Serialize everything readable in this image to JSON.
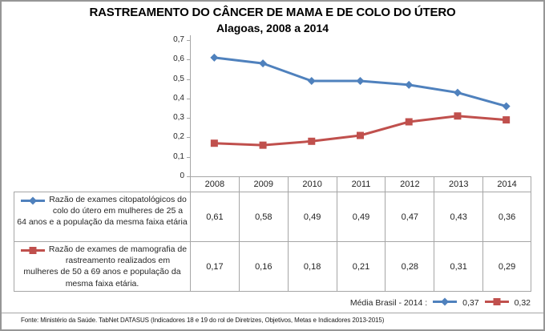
{
  "title": "RASTREAMENTO DO CÂNCER DE MAMA E DE COLO DO ÚTERO",
  "subtitle": "Alagoas, 2008 a 2014",
  "chart_data": {
    "type": "line",
    "categories": [
      "2008",
      "2009",
      "2010",
      "2011",
      "2012",
      "2013",
      "2014"
    ],
    "series": [
      {
        "name": "Razão de exames citopatológicos do colo do útero em mulheres de 25 a 64 anos e a população da mesma faixa etária",
        "values": [
          0.61,
          0.58,
          0.49,
          0.49,
          0.47,
          0.43,
          0.36
        ],
        "display_values": [
          "0,61",
          "0,58",
          "0,49",
          "0,49",
          "0,47",
          "0,43",
          "0,36"
        ],
        "color": "#4F81BD",
        "marker": "diamond"
      },
      {
        "name": "Razão de exames de mamografia de rastreamento realizados em mulheres de 50 a 69 anos e população da mesma faixa etária.",
        "values": [
          0.17,
          0.16,
          0.18,
          0.21,
          0.28,
          0.31,
          0.29
        ],
        "display_values": [
          "0,17",
          "0,16",
          "0,18",
          "0,21",
          "0,28",
          "0,31",
          "0,29"
        ],
        "color": "#C0504D",
        "marker": "square"
      }
    ],
    "ylim": [
      0,
      0.7
    ],
    "y_tick_labels": [
      "0",
      "0,1",
      "0,2",
      "0,3",
      "0,4",
      "0,5",
      "0,6",
      "0,7"
    ],
    "grid": false,
    "legend_position": "data-table-left"
  },
  "media_brasil": {
    "label": "Média Brasil - 2014 :",
    "entries": [
      {
        "value": "0,37",
        "color": "#4F81BD",
        "marker": "diamond"
      },
      {
        "value": "0,32",
        "color": "#C0504D",
        "marker": "square"
      }
    ]
  },
  "footer": {
    "source": "Fonte: Ministério da Saúde. TabNet DATASUS (Indicadores 18 e 19 do rol de Diretrizes, Objetivos, Metas e Indicadores 2013-2015)"
  },
  "colors": {
    "series1": "#4F81BD",
    "series2": "#C0504D",
    "table_border": "#A6A6A6",
    "frame_border": "#969696"
  }
}
